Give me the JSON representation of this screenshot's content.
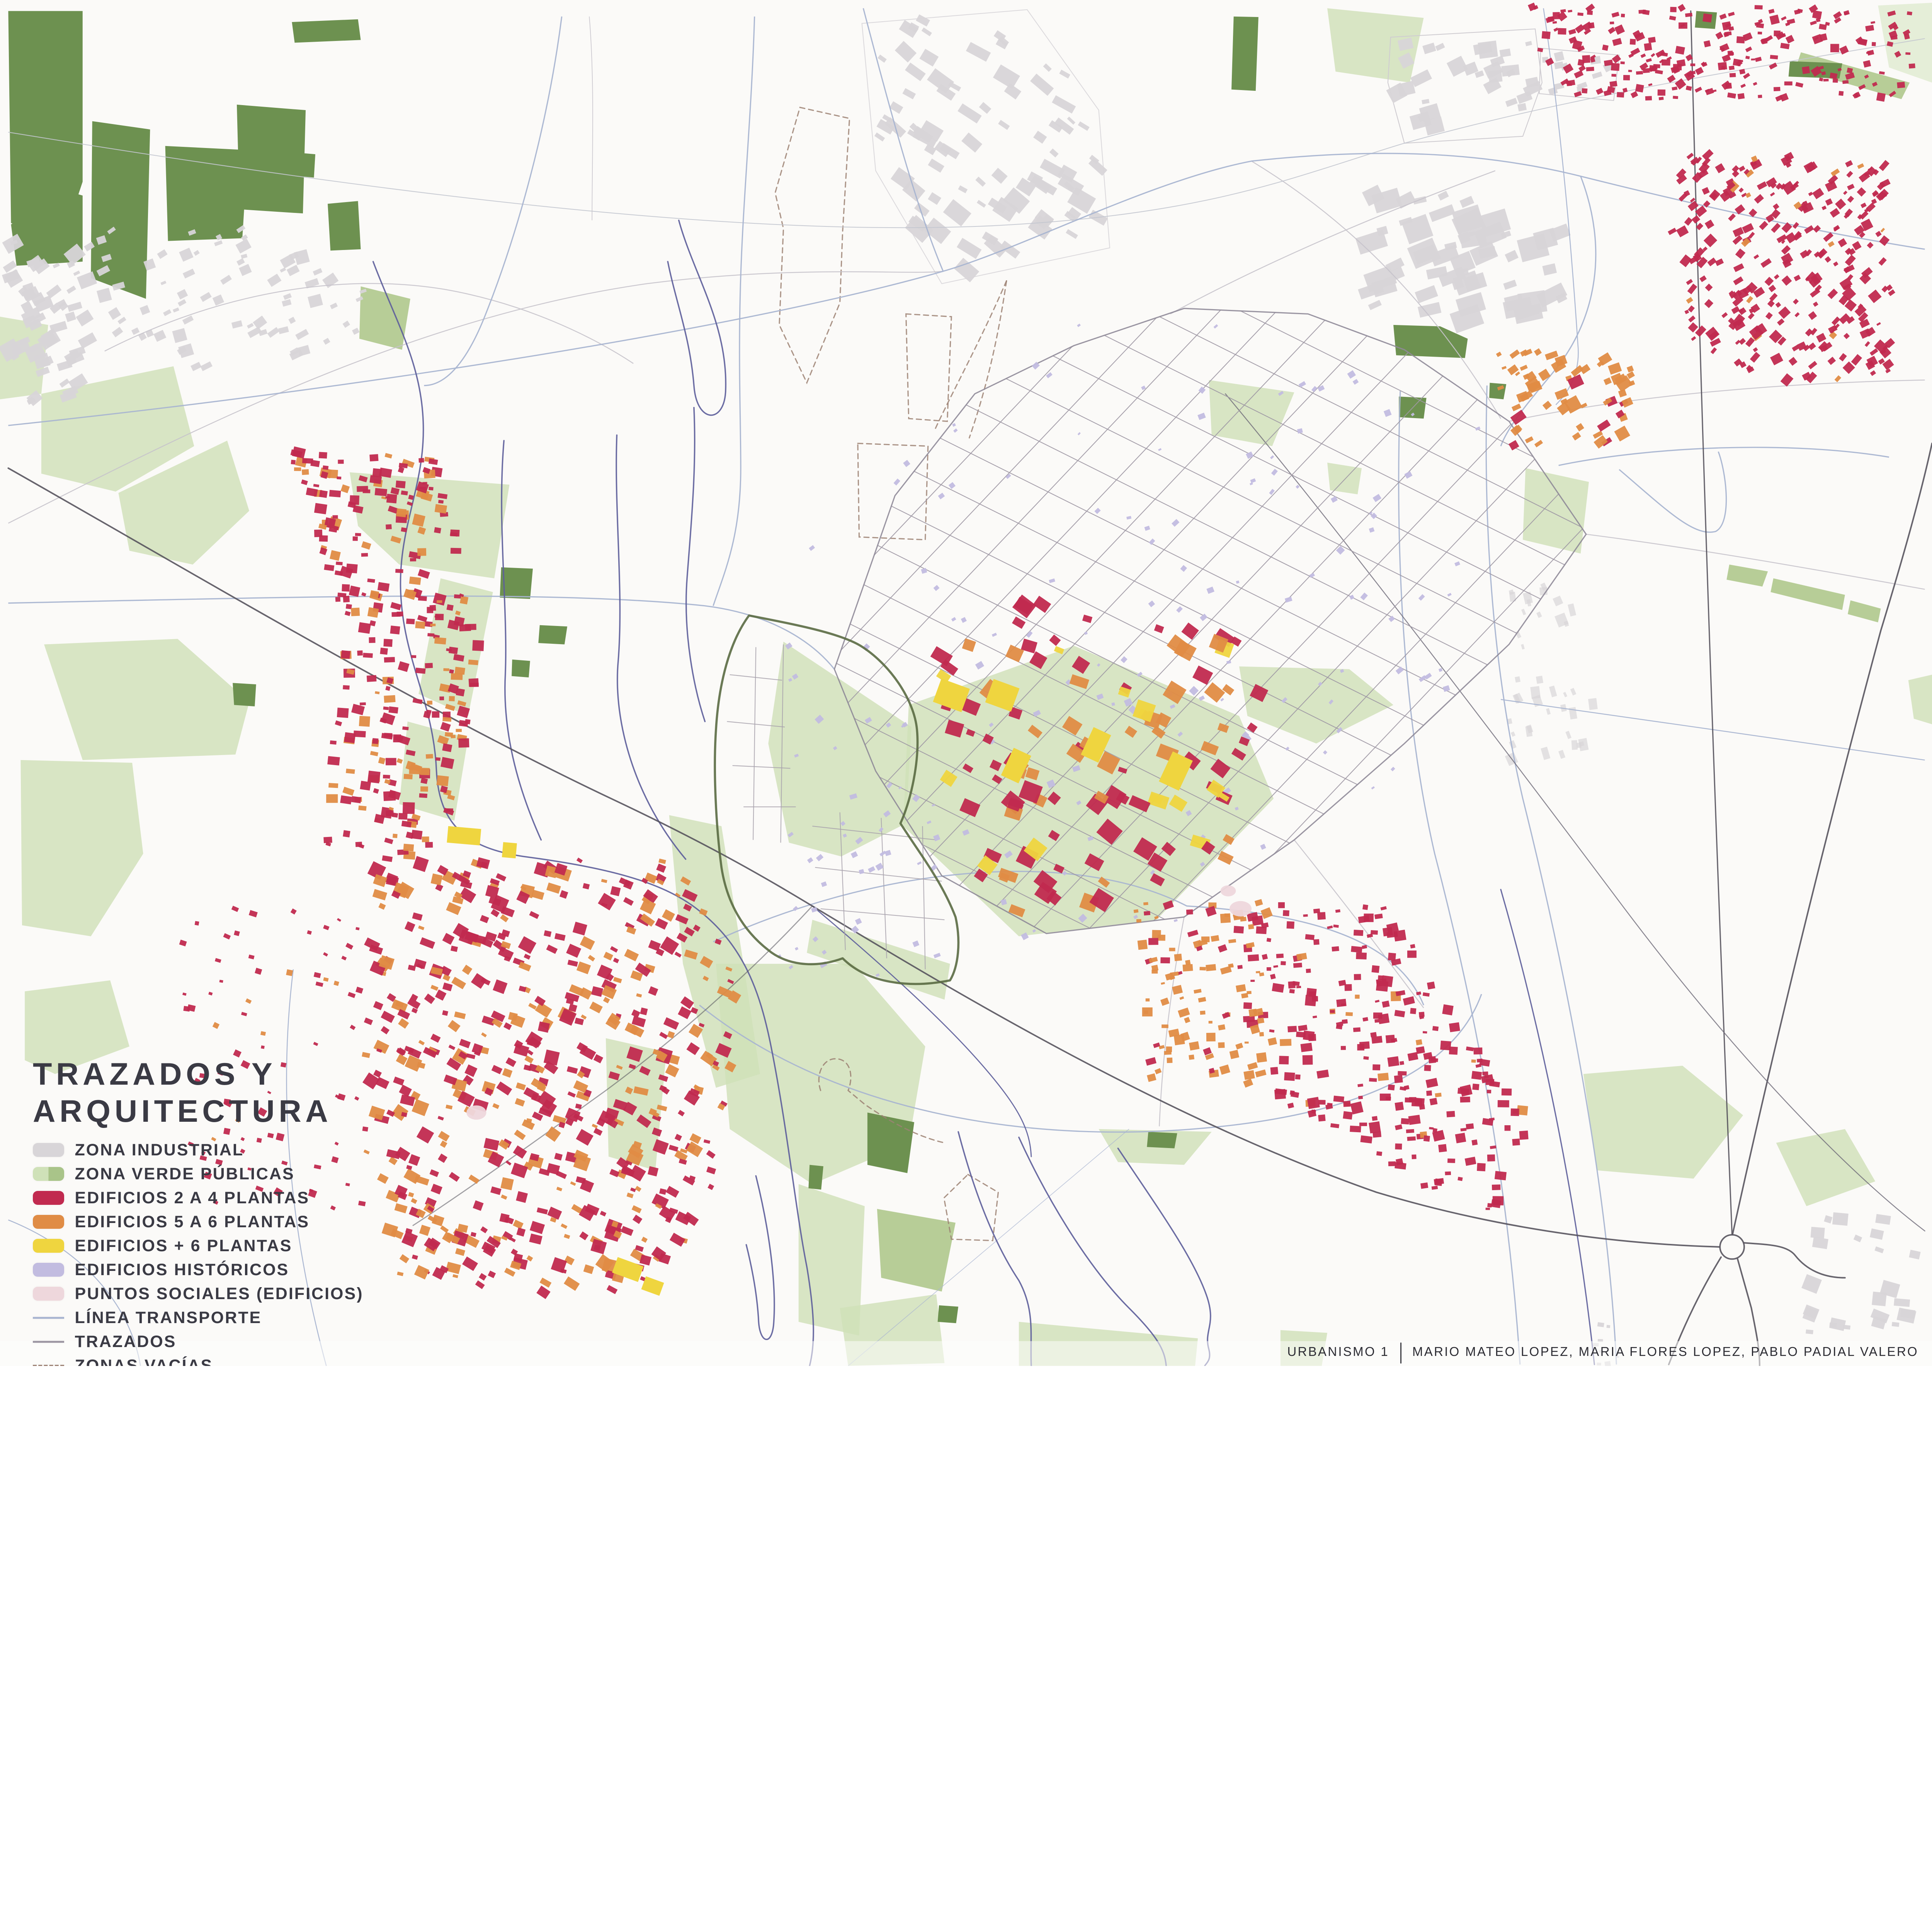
{
  "map_title": {
    "line1": "TRAZADOS Y",
    "line2": "ARQUITECTURA"
  },
  "legend": {
    "items": [
      {
        "key": "industrial",
        "label": "ZONA INDUSTRIAL"
      },
      {
        "key": "zona_verde",
        "label": "ZONA VERDE PÚBLICAS"
      },
      {
        "key": "edif_2_4",
        "label": "EDIFICIOS 2 A 4 PLANTAS"
      },
      {
        "key": "edif_5_6",
        "label": "EDIFICIOS 5 A 6 PLANTAS"
      },
      {
        "key": "edif_6p",
        "label": "EDIFICIOS + 6 PLANTAS"
      },
      {
        "key": "historicos",
        "label": "EDIFICIOS HISTÓRICOS"
      },
      {
        "key": "sociales",
        "label": "PUNTOS SOCIALES (EDIFICIOS)"
      },
      {
        "key": "transporte",
        "label": "LÍNEA TRANSPORTE"
      },
      {
        "key": "trazados",
        "label": "TRAZADOS"
      },
      {
        "key": "vacias",
        "label": "ZONAS VACÍAS"
      }
    ]
  },
  "credits": {
    "course": "URBANISMO 1",
    "separator": "|",
    "authors": "MARIO MATEO LOPEZ, MARIA FLORES LOPEZ, PABLO PADIAL VALERO"
  },
  "colors": {
    "paper": "#fbfaf8",
    "industrial": "#d8d5d8",
    "zona_verde": "#a9c489",
    "zona_verde_light": "#cfe1b8",
    "zona_verde_dark": "#6d9150",
    "edif_2_4": "#c12a4f",
    "edif_5_6": "#e08c45",
    "edif_6p": "#efd53f",
    "historicos": "#c2bce0",
    "sociales": "#eed7dc",
    "transporte": "#a9b5d1",
    "trazados": "#9e98a4",
    "vacias": "#9c8173",
    "rio": "#5e5f9b",
    "ferrocarril": "#56535d",
    "casco_outline": "#5a6a42",
    "ink": "#34343e"
  }
}
